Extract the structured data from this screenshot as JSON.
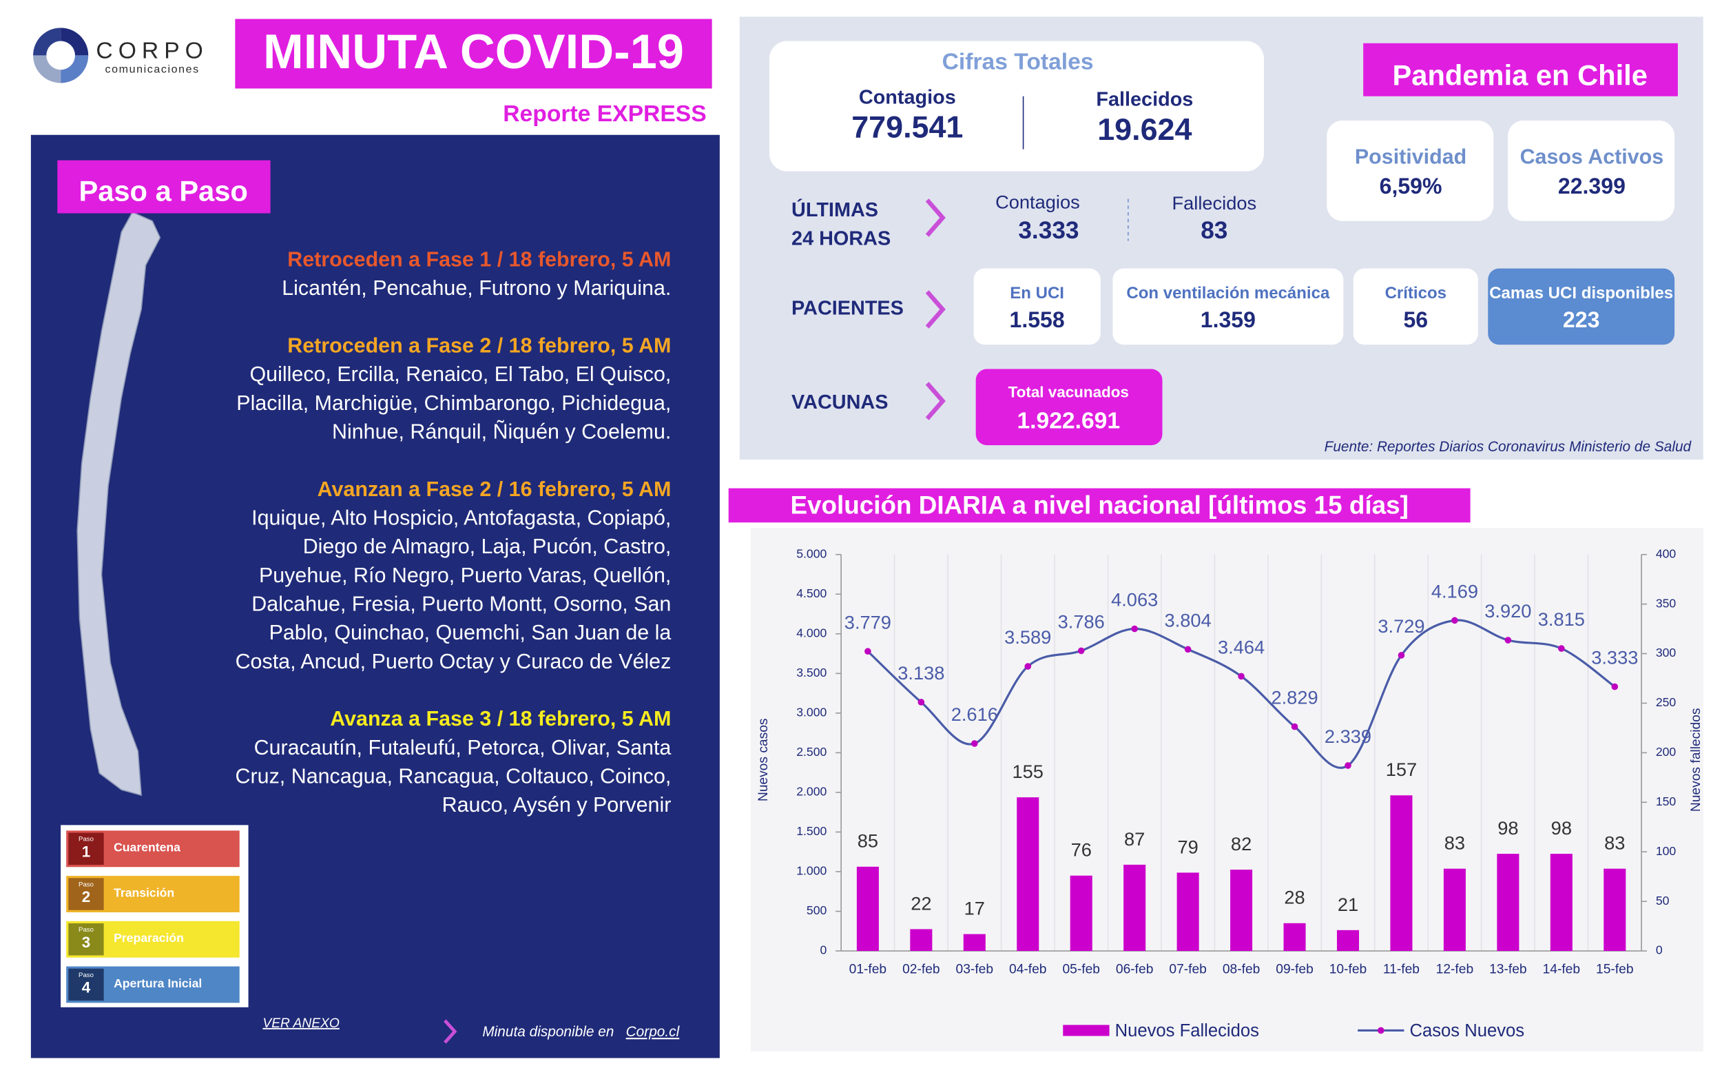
{
  "header": {
    "brand": "CORPO",
    "brand_sub": "comunicaciones",
    "title": "MINUTA COVID-19",
    "subtitle": "Reporte EXPRESS"
  },
  "paso": {
    "title": "Paso a Paso",
    "groups": [
      {
        "heading": "Retroceden a Fase 1 / 18 febrero, 5 AM",
        "lines": [
          "Licantén, Pencahue, Futrono y Mariquina."
        ]
      },
      {
        "heading": "Retroceden a Fase 2 / 18 febrero, 5 AM",
        "lines": [
          "Quilleco, Ercilla, Renaico, El Tabo, El Quisco,",
          "Placilla, Marchigüe, Chimbarongo, Pichidegua,",
          "Ninhue, Ránquil, Ñiquén y Coelemu."
        ]
      },
      {
        "heading": "Avanzan a Fase 2 / 16 febrero, 5 AM",
        "lines": [
          "Iquique, Alto Hospicio, Antofagasta, Copiapó,",
          "Diego de Almagro, Laja, Pucón, Castro,",
          "Puyehue, Río Negro, Puerto Varas, Quellón,",
          "Dalcahue, Fresia, Puerto Montt, Osorno, San",
          "Pablo, Quinchao, Quemchi, San Juan de la",
          "Costa, Ancud, Puerto Octay y Curaco de Vélez"
        ]
      },
      {
        "heading": "Avanza a Fase 3 / 18 febrero, 5 AM",
        "lines": [
          "Curacautín, Futaleufú, Petorca, Olivar, Santa",
          "Cruz, Nancagua, Rancagua, Coltauco, Coinco,",
          "Rauco, Aysén y Porvenir"
        ]
      }
    ],
    "legend_small": "Paso",
    "legend": [
      {
        "num": "1",
        "label": "Cuarentena"
      },
      {
        "num": "2",
        "label": "Transición"
      },
      {
        "num": "3",
        "label": "Preparación"
      },
      {
        "num": "4",
        "label": "Apertura Inicial"
      }
    ],
    "anexo": "VER ANEXO",
    "footer": "Minuta disponible en",
    "footer_link": "Corpo.cl"
  },
  "totals": {
    "title": "Cifras Totales",
    "contagios_label": "Contagios",
    "contagios": "779.541",
    "fallecidos_label": "Fallecidos",
    "fallecidos": "19.624"
  },
  "chile": {
    "title": "Pandemia en Chile",
    "cards": [
      {
        "label": "Positividad",
        "value": "6,59%"
      },
      {
        "label": "Casos Activos",
        "value": "22.399"
      }
    ]
  },
  "ultimas": {
    "label": [
      "ÚLTIMAS",
      "24 HORAS"
    ],
    "contagios_label": "Contagios",
    "contagios": "3.333",
    "fallecidos_label": "Fallecidos",
    "fallecidos": "83"
  },
  "pacientes": {
    "label": "PACIENTES",
    "cards": [
      {
        "label": "En UCI",
        "value": "1.558"
      },
      {
        "label": "Con ventilación mecánica",
        "value": "1.359"
      },
      {
        "label": "Críticos",
        "value": "56"
      },
      {
        "label": "Camas UCI disponibles",
        "value": "223"
      }
    ]
  },
  "vacunas": {
    "label": "VACUNAS",
    "card_label": "Total vacunados",
    "card_value": "1.922.691"
  },
  "source": "Fuente: Reportes Diarios Coronavirus Ministerio de Salud",
  "chart_data": {
    "type": "bar",
    "title": "Evolución DIARIA a nivel nacional [últimos 15 días]",
    "ylabel": "Nuevos casos",
    "y2label": "Nuevos fallecidos",
    "categories": [
      "01-feb",
      "02-feb",
      "03-feb",
      "04-feb",
      "05-feb",
      "06-feb",
      "07-feb",
      "08-feb",
      "09-feb",
      "10-feb",
      "11-feb",
      "12-feb",
      "13-feb",
      "14-feb",
      "15-feb"
    ],
    "series": [
      {
        "name": "Nuevos Fallecidos",
        "type": "bar",
        "axis": "y2",
        "color": "#cc00cc",
        "values": [
          85,
          22,
          17,
          155,
          76,
          87,
          79,
          82,
          28,
          21,
          157,
          83,
          98,
          98,
          83
        ]
      },
      {
        "name": "Casos Nuevos",
        "type": "line",
        "axis": "y",
        "color": "#4a5ba8",
        "marker_color": "#c000c0",
        "values": [
          3779,
          3138,
          2616,
          3589,
          3786,
          4063,
          3804,
          3464,
          2829,
          2339,
          3729,
          4169,
          3920,
          3815,
          3333
        ],
        "value_labels": [
          "3.779",
          "3.138",
          "2.616",
          "3.589",
          "3.786",
          "4.063",
          "3.804",
          "3.464",
          "2.829",
          "2.339",
          "3.729",
          "4.169",
          "3.920",
          "3.815",
          "3.333"
        ]
      }
    ],
    "ylim": [
      0,
      5000
    ],
    "yticks": [
      0,
      500,
      {
        "value": 1000,
        "label": "1.000"
      },
      {
        "value": 1500,
        "label": "1.500"
      },
      {
        "value": 2000,
        "label": "2.000"
      },
      {
        "value": 2500,
        "label": "2.500"
      },
      {
        "value": 3000,
        "label": "3.000"
      },
      {
        "value": 3500,
        "label": "3.500"
      },
      {
        "value": 4000,
        "label": "4.000"
      },
      {
        "value": 4500,
        "label": "4.500"
      },
      {
        "value": 5000,
        "label": "5.000"
      }
    ],
    "y2lim": [
      0,
      400
    ],
    "y2ticks": [
      0,
      50,
      100,
      150,
      200,
      250,
      300,
      350,
      400
    ],
    "legend": "bottom"
  }
}
